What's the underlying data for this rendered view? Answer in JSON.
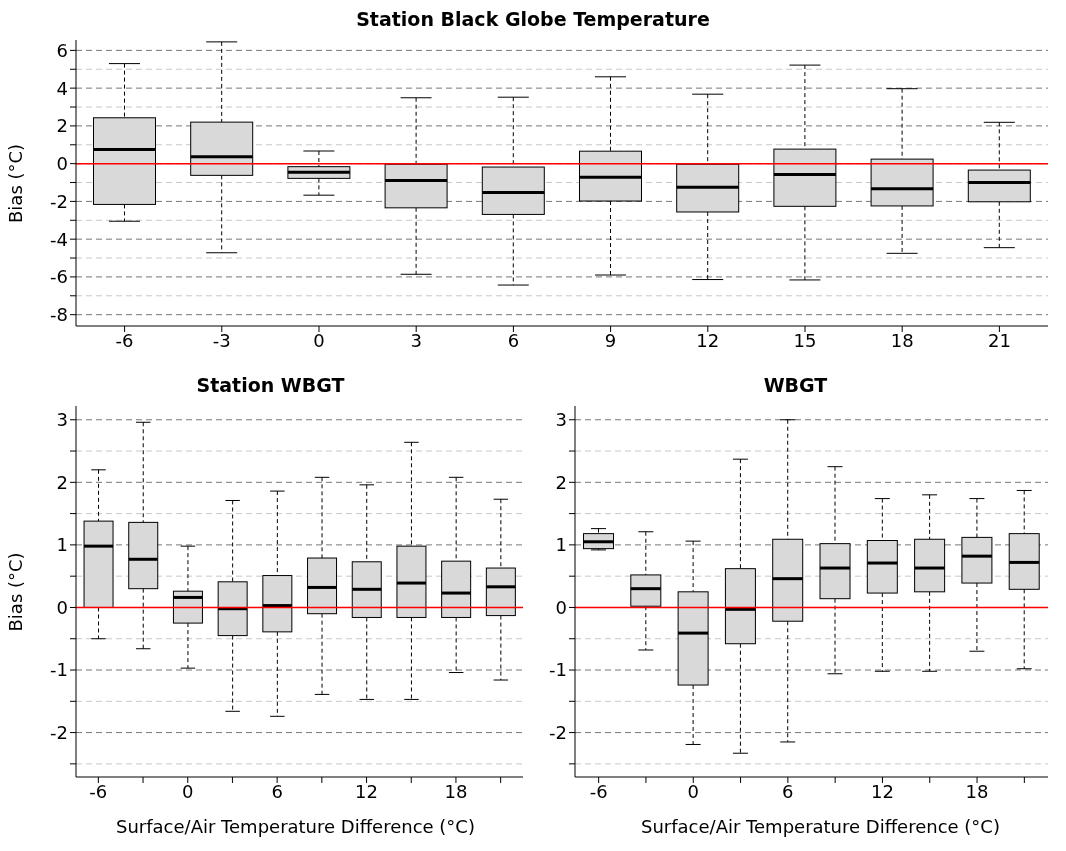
{
  "chart_data": [
    {
      "type": "box",
      "title": "Station Black Globe Temperature",
      "ylabel": "Bias (°C)",
      "categories": [
        "-6",
        "-3",
        "0",
        "3",
        "6",
        "9",
        "12",
        "15",
        "18",
        "21"
      ],
      "grid": true,
      "ylim": [
        -8.6,
        6.55
      ],
      "yticks": [
        -8,
        {
          "value": -7,
          "label": null
        },
        -6,
        {
          "value": -5,
          "label": null
        },
        -4,
        {
          "value": -3,
          "label": null
        },
        -2,
        {
          "value": -1,
          "label": null
        },
        0,
        {
          "value": 1,
          "label": null
        },
        2,
        {
          "value": 3,
          "label": null
        },
        4,
        {
          "value": 5,
          "label": null
        },
        6
      ],
      "ref_lines": [
        {
          "axis": "y",
          "value": 0,
          "color": "#ff0000"
        }
      ],
      "series": [
        {
          "color": "#d9d9d9",
          "boxes": [
            {
              "low": -3.05,
              "q1": -2.16,
              "median": 0.75,
              "q3": 2.43,
              "high": 5.3
            },
            {
              "low": -4.72,
              "q1": -0.62,
              "median": 0.37,
              "q3": 2.2,
              "high": 6.45
            },
            {
              "low": -1.67,
              "q1": -0.78,
              "median": -0.45,
              "q3": -0.16,
              "high": 0.67
            },
            {
              "low": -5.86,
              "q1": -2.34,
              "median": -0.89,
              "q3": -0.03,
              "high": 3.49
            },
            {
              "low": -6.43,
              "q1": -2.69,
              "median": -1.53,
              "q3": -0.18,
              "high": 3.52
            },
            {
              "low": -5.9,
              "q1": -1.98,
              "median": -0.72,
              "q3": 0.66,
              "high": 4.6
            },
            {
              "low": -6.14,
              "q1": -2.56,
              "median": -1.25,
              "q3": -0.03,
              "high": 3.68
            },
            {
              "low": -6.16,
              "q1": -2.26,
              "median": -0.58,
              "q3": 0.77,
              "high": 5.22
            },
            {
              "low": -4.75,
              "q1": -2.24,
              "median": -1.33,
              "q3": 0.24,
              "high": 3.97
            },
            {
              "low": -4.45,
              "q1": -2.02,
              "median": -1.0,
              "q3": -0.34,
              "high": 2.19
            }
          ]
        }
      ]
    },
    {
      "type": "box",
      "title": "Station WBGT",
      "ylabel": "Bias (°C)",
      "xlabel": "Surface/Air Temperature Difference (°C)",
      "categories": [
        "-6",
        null,
        "0",
        null,
        "6",
        null,
        "12",
        null,
        "18",
        null
      ],
      "grid": true,
      "ylim": [
        -2.71,
        3.22
      ],
      "yticks": [
        {
          "value": -2.5,
          "label": null
        },
        -2,
        {
          "value": -1.5,
          "label": null
        },
        -1,
        {
          "value": -0.5,
          "label": null
        },
        0,
        {
          "value": 0.5,
          "label": null
        },
        1,
        {
          "value": 1.5,
          "label": null
        },
        2,
        {
          "value": 2.5,
          "label": null
        },
        3
      ],
      "ref_lines": [
        {
          "axis": "y",
          "value": 0,
          "color": "#ff0000"
        }
      ],
      "series": [
        {
          "color": "#d9d9d9",
          "boxes": [
            {
              "low": -0.5,
              "q1": 0,
              "median": 0.98,
              "q3": 1.38,
              "high": 2.2
            },
            {
              "low": -0.66,
              "q1": 0.3,
              "median": 0.77,
              "q3": 1.36,
              "high": 2.96
            },
            {
              "low": -0.97,
              "q1": -0.25,
              "median": 0.16,
              "q3": 0.26,
              "high": 0.98
            },
            {
              "low": -1.66,
              "q1": -0.45,
              "median": -0.02,
              "q3": 0.41,
              "high": 1.71
            },
            {
              "low": -1.74,
              "q1": -0.39,
              "median": 0.03,
              "q3": 0.51,
              "high": 1.86
            },
            {
              "low": -1.39,
              "q1": -0.1,
              "median": 0.32,
              "q3": 0.79,
              "high": 2.08
            },
            {
              "low": -1.47,
              "q1": -0.16,
              "median": 0.29,
              "q3": 0.73,
              "high": 1.96
            },
            {
              "low": -1.47,
              "q1": -0.16,
              "median": 0.39,
              "q3": 0.98,
              "high": 2.64
            },
            {
              "low": -1.04,
              "q1": -0.16,
              "median": 0.23,
              "q3": 0.74,
              "high": 2.08
            },
            {
              "low": -1.16,
              "q1": -0.13,
              "median": 0.33,
              "q3": 0.63,
              "high": 1.73
            }
          ]
        }
      ]
    },
    {
      "type": "box",
      "title": "WBGT",
      "xlabel": "Surface/Air Temperature Difference (°C)",
      "categories": [
        "-6",
        null,
        "0",
        null,
        "6",
        null,
        "12",
        null,
        "18",
        null
      ],
      "grid": true,
      "ylim": [
        -2.71,
        3.22
      ],
      "yticks": [
        {
          "value": -2.5,
          "label": null
        },
        -2,
        {
          "value": -1.5,
          "label": null
        },
        -1,
        {
          "value": -0.5,
          "label": null
        },
        0,
        {
          "value": 0.5,
          "label": null
        },
        1,
        {
          "value": 1.5,
          "label": null
        },
        2,
        {
          "value": 2.5,
          "label": null
        },
        3
      ],
      "ref_lines": [
        {
          "axis": "y",
          "value": 0,
          "color": "#ff0000"
        }
      ],
      "series": [
        {
          "color": "#d9d9d9",
          "boxes": [
            {
              "low": 0.92,
              "q1": 0.94,
              "median": 1.05,
              "q3": 1.18,
              "high": 1.26
            },
            {
              "low": -0.68,
              "q1": 0.02,
              "median": 0.3,
              "q3": 0.52,
              "high": 1.21
            },
            {
              "low": -2.19,
              "q1": -1.24,
              "median": -0.41,
              "q3": 0.25,
              "high": 1.06
            },
            {
              "low": -2.33,
              "q1": -0.58,
              "median": -0.03,
              "q3": 0.62,
              "high": 2.37
            },
            {
              "low": -2.15,
              "q1": -0.22,
              "median": 0.46,
              "q3": 1.09,
              "high": 3.0
            },
            {
              "low": -1.06,
              "q1": 0.14,
              "median": 0.63,
              "q3": 1.02,
              "high": 2.25
            },
            {
              "low": -1.02,
              "q1": 0.23,
              "median": 0.71,
              "q3": 1.07,
              "high": 1.74
            },
            {
              "low": -1.02,
              "q1": 0.25,
              "median": 0.63,
              "q3": 1.09,
              "high": 1.8
            },
            {
              "low": -0.7,
              "q1": 0.39,
              "median": 0.82,
              "q3": 1.12,
              "high": 1.74
            },
            {
              "low": -0.98,
              "q1": 0.29,
              "median": 0.72,
              "q3": 1.18,
              "high": 1.87
            }
          ]
        }
      ]
    }
  ]
}
